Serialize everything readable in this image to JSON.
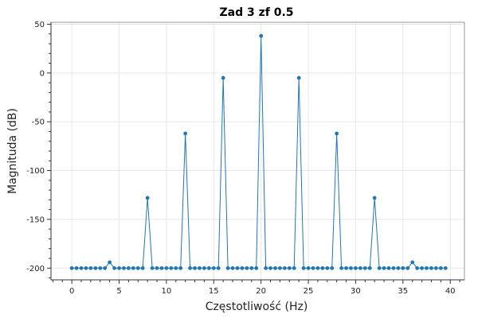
{
  "chart_data": {
    "type": "line",
    "title": "Zad 3 zf 0.5",
    "xlabel": "Częstotliwość (Hz)",
    "ylabel": "Magnituda (dB)",
    "xlim": [
      -2.2,
      41.5
    ],
    "ylim": [
      -212,
      52
    ],
    "xticks": [
      0,
      5,
      10,
      15,
      20,
      25,
      30,
      35,
      40
    ],
    "xtick_labels": [
      "0",
      "5",
      "10",
      "15",
      "20",
      "25",
      "30",
      "35",
      "40"
    ],
    "yticks": [
      50,
      0,
      -50,
      -100,
      -150,
      -200
    ],
    "ytick_labels": [
      "50",
      "0",
      "-50",
      "-100",
      "-150",
      "-200"
    ],
    "grid": true,
    "legend": "none",
    "color": "#1f77b4",
    "series": [
      {
        "x": [
          0,
          0.5,
          1,
          1.5,
          2,
          2.5,
          3,
          3.5,
          4,
          4.5,
          5,
          5.5,
          6,
          6.5,
          7,
          7.5,
          8,
          8.5,
          9,
          9.5,
          10,
          10.5,
          11,
          11.5,
          12,
          12.5,
          13,
          13.5,
          14,
          14.5,
          15,
          15.5,
          16,
          16.5,
          17,
          17.5,
          18,
          18.5,
          19,
          19.5,
          20,
          20.5,
          21,
          21.5,
          22,
          22.5,
          23,
          23.5,
          24,
          24.5,
          25,
          25.5,
          26,
          26.5,
          27,
          27.5,
          28,
          28.5,
          29,
          29.5,
          30,
          30.5,
          31,
          31.5,
          32,
          32.5,
          33,
          33.5,
          34,
          34.5,
          35,
          35.5,
          36,
          36.5,
          37,
          37.5,
          38,
          38.5,
          39,
          39.5
        ],
        "y": [
          -200,
          -200,
          -200,
          -200,
          -200,
          -200,
          -200,
          -200,
          -194,
          -200,
          -200,
          -200,
          -200,
          -200,
          -200,
          -200,
          -128,
          -200,
          -200,
          -200,
          -200,
          -200,
          -200,
          -200,
          -62,
          -200,
          -200,
          -200,
          -200,
          -200,
          -200,
          -200,
          -5,
          -200,
          -200,
          -200,
          -200,
          -200,
          -200,
          -200,
          38,
          -200,
          -200,
          -200,
          -200,
          -200,
          -200,
          -200,
          -5,
          -200,
          -200,
          -200,
          -200,
          -200,
          -200,
          -200,
          -62,
          -200,
          -200,
          -200,
          -200,
          -200,
          -200,
          -200,
          -128,
          -200,
          -200,
          -200,
          -200,
          -200,
          -200,
          -200,
          -194,
          -200,
          -200,
          -200,
          -200,
          -200,
          -200,
          -200
        ]
      }
    ]
  }
}
